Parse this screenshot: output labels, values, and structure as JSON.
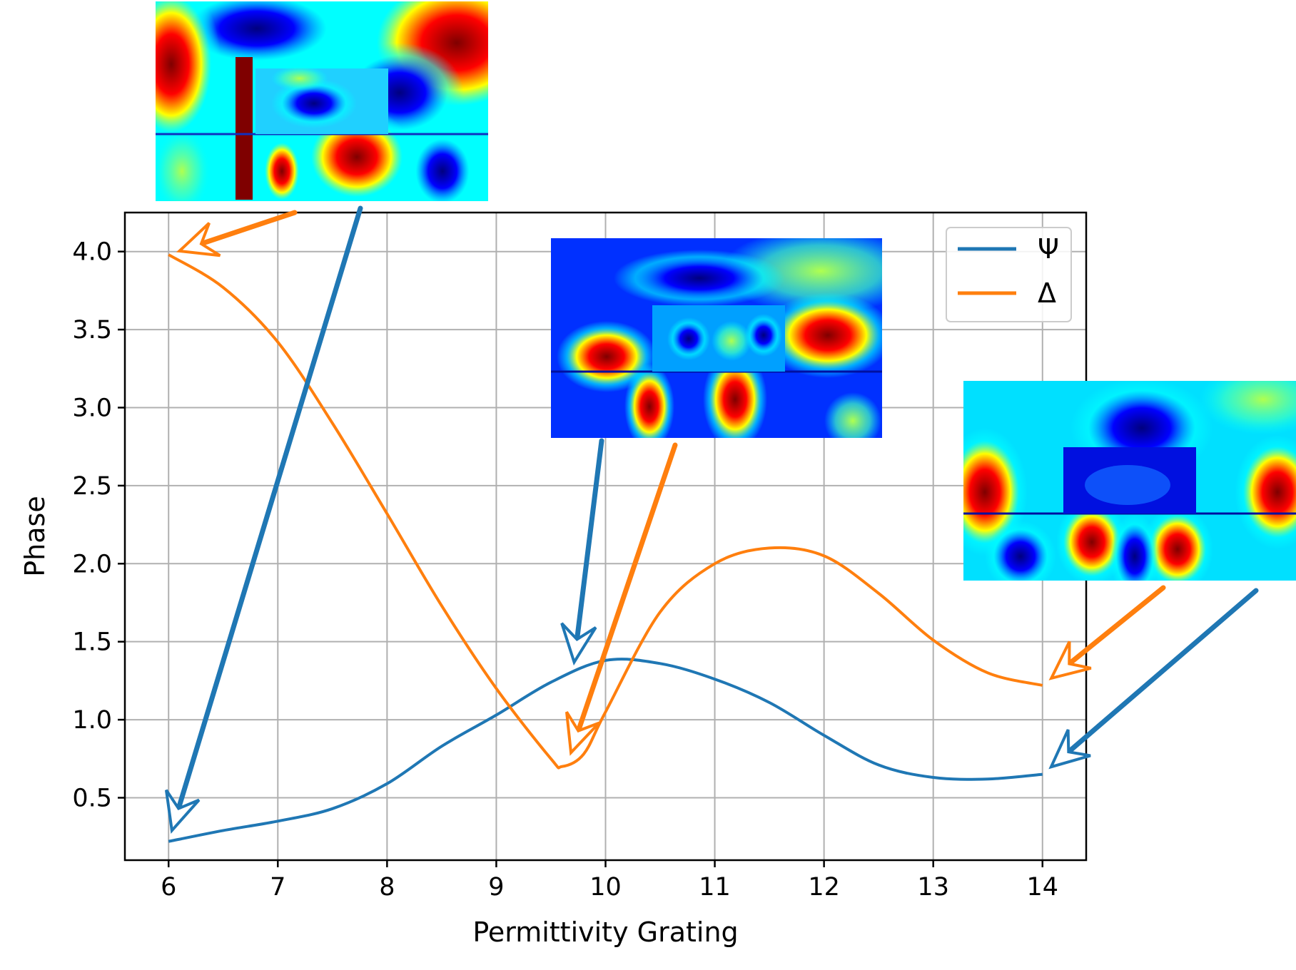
{
  "chart_data": {
    "type": "line",
    "xlabel": "Permittivity Grating",
    "ylabel": "Phase",
    "xlim": [
      5.6,
      14.4
    ],
    "ylim": [
      0.1,
      4.25
    ],
    "xticks": [
      6,
      7,
      8,
      9,
      10,
      11,
      12,
      13,
      14
    ],
    "yticks": [
      0.5,
      1.0,
      1.5,
      2.0,
      2.5,
      3.0,
      3.5,
      4.0
    ],
    "ytick_labels": [
      "0.5",
      "1.0",
      "1.5",
      "2.0",
      "2.5",
      "3.0",
      "3.5",
      "4.0"
    ],
    "grid": true,
    "legend_position": "top-right",
    "series": [
      {
        "name": "Ψ",
        "color": "#1f77b4",
        "x": [
          6,
          6.5,
          7,
          7.5,
          8,
          8.5,
          9,
          9.5,
          10,
          10.5,
          11,
          11.5,
          12,
          12.5,
          13,
          13.5,
          14
        ],
        "y": [
          0.22,
          0.29,
          0.35,
          0.43,
          0.59,
          0.83,
          1.03,
          1.24,
          1.38,
          1.36,
          1.26,
          1.11,
          0.9,
          0.71,
          0.63,
          0.62,
          0.65
        ]
      },
      {
        "name": "Δ",
        "color": "#ff7f0e",
        "x": [
          6,
          6.5,
          7,
          7.5,
          8,
          8.5,
          9,
          9.5,
          9.6,
          9.8,
          10,
          10.5,
          11,
          11.5,
          12,
          12.5,
          13,
          13.5,
          14
        ],
        "y": [
          3.98,
          3.77,
          3.42,
          2.9,
          2.32,
          1.73,
          1.2,
          0.75,
          0.7,
          0.78,
          1.05,
          1.69,
          2.0,
          2.1,
          2.05,
          1.81,
          1.51,
          1.3,
          1.22
        ]
      }
    ],
    "annotations": [
      {
        "image": "field-map",
        "color": "#1f77b4",
        "points_to": {
          "series": "Ψ",
          "x": 6
        }
      },
      {
        "image": "field-map",
        "color": "#ff7f0e",
        "points_to": {
          "series": "Δ",
          "x": 6
        }
      },
      {
        "image": "field-map",
        "color": "#1f77b4",
        "points_to": {
          "series": "Ψ",
          "x": 9.7
        }
      },
      {
        "image": "field-map",
        "color": "#ff7f0e",
        "points_to": {
          "series": "Δ",
          "x": 9.65
        }
      },
      {
        "image": "field-map",
        "color": "#1f77b4",
        "points_to": {
          "series": "Ψ",
          "x": 14
        }
      },
      {
        "image": "field-map",
        "color": "#ff7f0e",
        "points_to": {
          "series": "Δ",
          "x": 14
        }
      }
    ]
  }
}
